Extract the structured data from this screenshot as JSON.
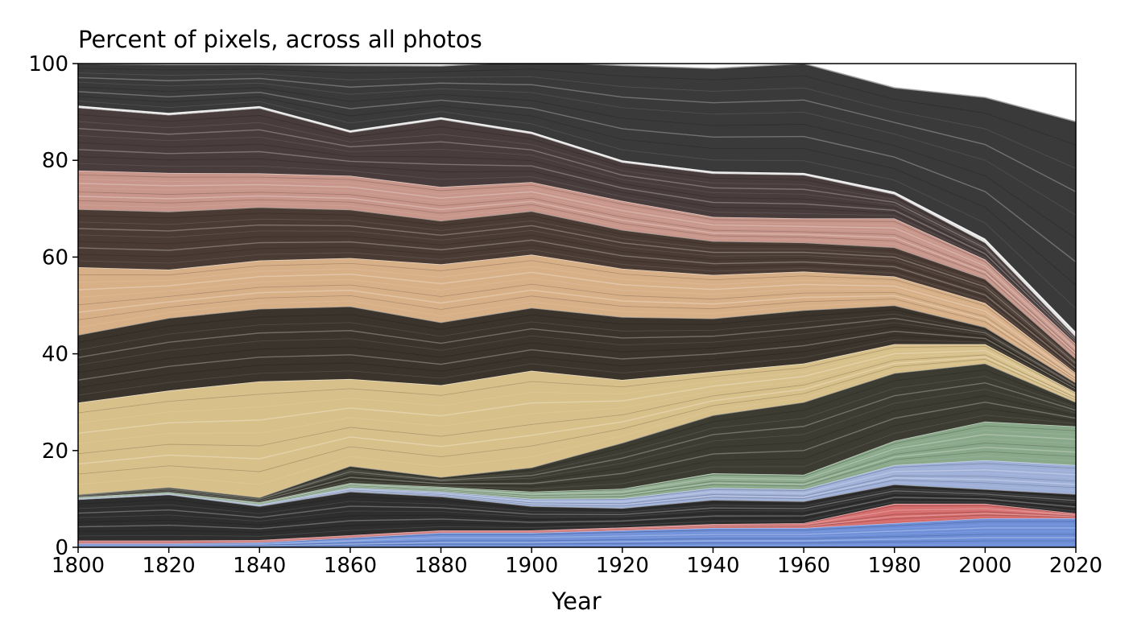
{
  "chart_data": {
    "type": "area",
    "title": "Percent of pixels, across all photos",
    "xlabel": "Year",
    "ylabel": "",
    "xlim": [
      1800,
      2020
    ],
    "ylim": [
      0,
      100
    ],
    "x_ticks": [
      1800,
      1820,
      1840,
      1860,
      1880,
      1900,
      1920,
      1940,
      1960,
      1980,
      2000,
      2020
    ],
    "y_ticks": [
      0,
      20,
      40,
      60,
      80,
      100
    ],
    "grid": false,
    "legend": "none",
    "x": [
      1800,
      1820,
      1840,
      1860,
      1880,
      1900,
      1920,
      1940,
      1960,
      1980,
      2000,
      2020
    ],
    "series": [
      {
        "color": "#6e8fd8",
        "values": [
          0.8,
          0.8,
          1.0,
          2.0,
          3.0,
          3.0,
          3.5,
          4.0,
          4.0,
          5.0,
          6.0,
          6.0
        ]
      },
      {
        "color": "#d46a6a",
        "values": [
          0.6,
          0.6,
          0.5,
          0.5,
          0.5,
          0.5,
          0.6,
          0.8,
          1.0,
          4.0,
          3.0,
          1.0
        ]
      },
      {
        "color": "#2e2e2e",
        "values": [
          8.5,
          9.5,
          7.0,
          9.0,
          7.0,
          5.0,
          4.0,
          5.0,
          4.5,
          4.0,
          3.0,
          4.0
        ]
      },
      {
        "color": "#9fb0d8",
        "values": [
          0.2,
          0.2,
          0.3,
          0.8,
          1.0,
          1.5,
          2.0,
          2.5,
          2.5,
          4.0,
          6.0,
          6.0
        ]
      },
      {
        "color": "#8aa88a",
        "values": [
          0.3,
          0.3,
          0.5,
          1.0,
          1.0,
          1.5,
          2.0,
          3.0,
          3.0,
          5.0,
          8.0,
          8.0
        ]
      },
      {
        "color": "#3c3c32",
        "values": [
          0.5,
          1.0,
          1.0,
          3.5,
          2.0,
          5.0,
          9.5,
          12.0,
          15.0,
          14.0,
          12.0,
          5.0
        ]
      },
      {
        "color": "#d8c08a",
        "values": [
          19.0,
          20.0,
          24.0,
          18.0,
          19.0,
          20.0,
          13.0,
          9.0,
          8.0,
          6.0,
          4.0,
          2.0
        ]
      },
      {
        "color": "#3a342c",
        "values": [
          14.0,
          15.0,
          15.0,
          15.0,
          13.0,
          13.0,
          13.0,
          11.0,
          11.0,
          8.0,
          3.5,
          2.0
        ]
      },
      {
        "color": "#d8b088",
        "values": [
          14.0,
          10.0,
          10.0,
          10.0,
          12.0,
          11.0,
          10.0,
          9.0,
          8.0,
          6.0,
          5.0,
          2.0
        ]
      },
      {
        "color": "#4a3c34",
        "values": [
          12.0,
          12.0,
          11.0,
          10.0,
          9.0,
          9.0,
          8.0,
          7.0,
          6.0,
          6.0,
          5.0,
          3.0
        ]
      },
      {
        "color": "#c8968a",
        "values": [
          8.0,
          8.0,
          7.0,
          7.0,
          7.0,
          6.0,
          6.0,
          5.0,
          5.0,
          6.0,
          4.0,
          3.0
        ]
      },
      {
        "color": "#483c3c",
        "values": [
          13.0,
          12.0,
          13.5,
          9.0,
          14.0,
          10.0,
          8.0,
          9.0,
          9.0,
          5.0,
          3.5,
          1.5
        ]
      },
      {
        "color": "#f4f4f4",
        "values": [
          0.4,
          0.4,
          0.4,
          0.4,
          0.4,
          0.4,
          0.4,
          0.4,
          0.4,
          0.5,
          0.8,
          1.0
        ]
      },
      {
        "color": "#3a3a3a",
        "values": [
          8.7,
          10.0,
          8.6,
          13.4,
          10.6,
          14.6,
          19.6,
          21.3,
          22.6,
          21.5,
          29.2,
          43.5
        ]
      }
    ]
  }
}
